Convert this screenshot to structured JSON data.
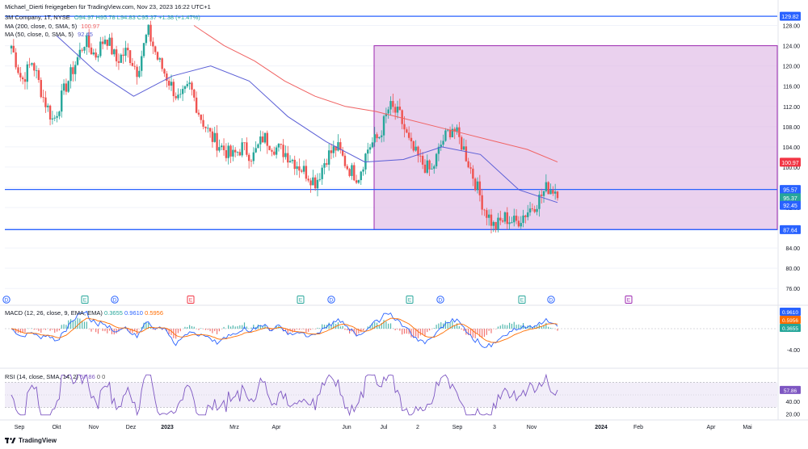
{
  "header": {
    "published_by": "Michael_Dierti freigegeben für TradingView.com, Nov 23, 2023 16:22 UTC+1",
    "symbol": "3M Company, 1T, NYSE",
    "ohlc": "O94.97 H95.78 L94.83 C95.37 +1.38 (+1.47%)",
    "ma200_label": "MA (200, close, 0, SMA, 5)",
    "ma200_value": "100.97",
    "ma50_label": "MA (50, close, 0, SMA, 5)",
    "ma50_value": "92.45"
  },
  "macd": {
    "label": "MACD (12, 26, close, 9, EMA, EMA)",
    "v1": "0.3655",
    "v2": "0.9610",
    "v3": "0.5956"
  },
  "rsi": {
    "label": "RSI (14, close, SMA, 14, 2)",
    "v1": "57.86",
    "v2": "0",
    "v3": "0"
  },
  "footer": {
    "brand": "TradingView"
  },
  "colors": {
    "ma200": "#f06262",
    "ma50": "#5b5fd6",
    "up": "#26a69a",
    "down": "#ef5350",
    "hline": "#2962ff",
    "box_fill": "#e1bee7",
    "box_stroke": "#9c27b0",
    "macd": "#2962ff",
    "signal": "#ff6d00",
    "rsi": "#7e57c2"
  },
  "chart_data": {
    "type": "candlestick",
    "price_axis_ticks": [
      128.0,
      124.0,
      120.0,
      116.0,
      112.0,
      108.0,
      104.0,
      100.0,
      96.0,
      92.0,
      88.0,
      84.0,
      80.0,
      76.0
    ],
    "price_badges": [
      {
        "label": "129.82",
        "value": 129.82,
        "color": "#2962ff"
      },
      {
        "label": "100.97",
        "value": 100.97,
        "color": "#f23645"
      },
      {
        "label": "95.57",
        "value": 95.57,
        "color": "#2962ff"
      },
      {
        "label": "95.37",
        "value": 95.37,
        "color": "#26a69a"
      },
      {
        "label": "92.45",
        "value": 92.45,
        "color": "#2962ff"
      },
      {
        "label": "87.64",
        "value": 87.64,
        "color": "#2962ff"
      }
    ],
    "horizontal_lines": [
      129.82,
      95.57,
      87.64
    ],
    "rectangle": {
      "x_start": "2023-06-26",
      "x_end": "end",
      "y_low": 87.64,
      "y_high": 124.0
    },
    "time_axis_ticks": [
      "Sep",
      "Okt",
      "Nov",
      "Dez",
      "2023",
      "Mrz",
      "Apr",
      "Jun",
      "Jul",
      "2",
      "Sep",
      "3",
      "Nov",
      "2024",
      "Feb",
      "Apr",
      "Mai"
    ],
    "close_path": [
      [
        "Sep",
        124
      ],
      [
        "",
        117
      ],
      [
        "",
        121
      ],
      [
        "Okt",
        114
      ],
      [
        "",
        109
      ],
      [
        "",
        115
      ],
      [
        "Nov",
        120
      ],
      [
        "",
        125
      ],
      [
        "",
        122
      ],
      [
        "Dez",
        126
      ],
      [
        "",
        121
      ],
      [
        "",
        123
      ],
      [
        "",
        119
      ],
      [
        "2023",
        127
      ],
      [
        "",
        121
      ],
      [
        "",
        117
      ],
      [
        "",
        113
      ],
      [
        "",
        116
      ],
      [
        "Mrz",
        110
      ],
      [
        "",
        106
      ],
      [
        "",
        104
      ],
      [
        "",
        102
      ],
      [
        "Apr",
        104
      ],
      [
        "",
        102
      ],
      [
        "",
        106
      ],
      [
        "",
        104
      ],
      [
        "",
        103
      ],
      [
        "",
        101
      ],
      [
        "",
        99
      ],
      [
        "Jun",
        97
      ],
      [
        "",
        102
      ],
      [
        "",
        104
      ],
      [
        "",
        100
      ],
      [
        "Jul",
        98
      ],
      [
        "",
        104
      ],
      [
        "",
        106
      ],
      [
        "",
        112
      ],
      [
        "2",
        110
      ],
      [
        "",
        104
      ],
      [
        "",
        101
      ],
      [
        "",
        99
      ],
      [
        "Sep",
        105
      ],
      [
        "",
        108
      ],
      [
        "",
        104
      ],
      [
        "",
        98
      ],
      [
        "3",
        92
      ],
      [
        "",
        88
      ],
      [
        "",
        90
      ],
      [
        "",
        89
      ],
      [
        "Nov",
        91
      ],
      [
        "",
        93
      ],
      [
        "",
        96
      ],
      [
        "",
        95.37
      ]
    ],
    "ma200_path": [
      128,
      124,
      121,
      117,
      114,
      112,
      111,
      109.5,
      108,
      106.5,
      105,
      103.5,
      101
    ],
    "ma50_path": [
      126,
      119,
      114,
      118,
      120,
      117,
      110,
      105,
      101,
      101.5,
      104,
      102.5,
      95.5,
      93
    ],
    "event_markers": [
      "D",
      "E",
      "D",
      "E",
      "E",
      "D",
      "E",
      "D",
      "E",
      "D",
      "E"
    ],
    "macd_axis_ticks": [
      "-4.00"
    ],
    "rsi_axis_ticks": [
      "40.00",
      "20.00"
    ],
    "rsi_bands": [
      70,
      30
    ]
  }
}
